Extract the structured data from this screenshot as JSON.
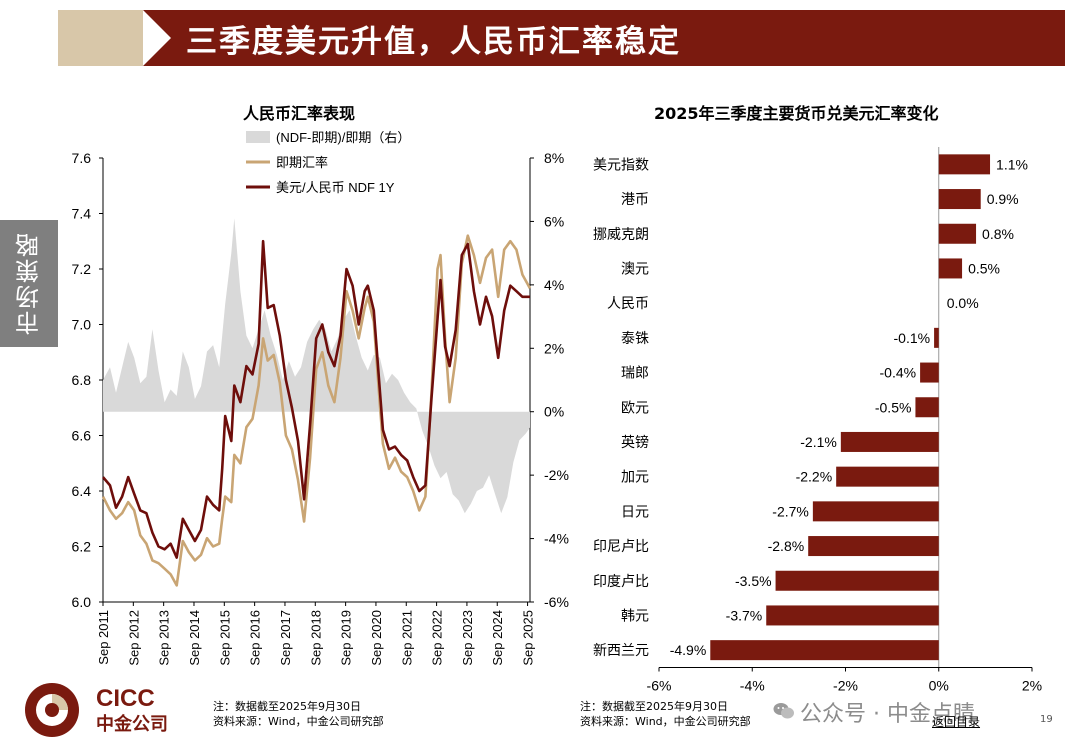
{
  "header": {
    "title": "三季度美元升值，人民币汇率稳定"
  },
  "side_tab": {
    "label": "市场策略"
  },
  "colors": {
    "brand": "#7a1a0f",
    "beige": "#d8c7a9",
    "gray_area": "#d9d9d9",
    "spot_line": "#c9a574",
    "ndf_line": "#6e0e0b"
  },
  "left_notes": {
    "line1": "注：数据截至2025年9月30日",
    "line2": "资料来源：Wind，中金公司研究部"
  },
  "right_notes": {
    "line1": "注：数据截至2025年9月30日",
    "line2": "资料来源：Wind，中金公司研究部"
  },
  "footer": {
    "wechat": "公众号 · 中金点睛",
    "back_link": "返回目录",
    "page_number": "19"
  },
  "logo": {
    "en": "CICC",
    "cn": "中金公司"
  },
  "chart_data": [
    {
      "type": "line",
      "title": "人民币汇率表现",
      "x_ticks": [
        "Sep 2011",
        "Sep 2012",
        "Sep 2013",
        "Sep 2014",
        "Sep 2015",
        "Sep 2016",
        "Sep 2017",
        "Sep 2018",
        "Sep 2019",
        "Sep 2020",
        "Sep 2021",
        "Sep 2022",
        "Sep 2023",
        "Sep 2024",
        "Sep 2025"
      ],
      "y_left": {
        "ticks": [
          "7.6",
          "7.4",
          "7.2",
          "7.0",
          "6.8",
          "6.6",
          "6.4",
          "6.2",
          "6.0"
        ],
        "range": [
          6.0,
          7.6
        ]
      },
      "y_right": {
        "ticks": [
          "8%",
          "6%",
          "4%",
          "2%",
          "0%",
          "-2%",
          "-4%",
          "-6%"
        ],
        "range": [
          -6,
          8
        ]
      },
      "legend_position": "top",
      "series": [
        {
          "name": "(NDF-即期)/即期（右）",
          "type": "area",
          "axis": "right",
          "x": [
            2011.67,
            2011.9,
            2012.1,
            2012.3,
            2012.5,
            2012.7,
            2012.9,
            2013.1,
            2013.3,
            2013.5,
            2013.7,
            2013.9,
            2014.1,
            2014.3,
            2014.5,
            2014.7,
            2014.9,
            2015.1,
            2015.3,
            2015.5,
            2015.7,
            2015.9,
            2016.0,
            2016.2,
            2016.4,
            2016.6,
            2016.8,
            2017.0,
            2017.2,
            2017.4,
            2017.6,
            2017.8,
            2018.0,
            2018.2,
            2018.4,
            2018.6,
            2018.8,
            2019.0,
            2019.2,
            2019.4,
            2019.6,
            2019.8,
            2020.0,
            2020.2,
            2020.4,
            2020.6,
            2020.8,
            2021.0,
            2021.2,
            2021.4,
            2021.6,
            2021.8,
            2022.0,
            2022.2,
            2022.4,
            2022.6,
            2022.8,
            2023.0,
            2023.2,
            2023.4,
            2023.6,
            2023.8,
            2024.0,
            2024.2,
            2024.4,
            2024.6,
            2024.8,
            2025.0,
            2025.2,
            2025.4,
            2025.6,
            2025.75
          ],
          "values": [
            1.0,
            1.4,
            0.6,
            1.4,
            2.2,
            1.7,
            0.9,
            1.1,
            2.6,
            1.3,
            0.3,
            0.7,
            0.5,
            1.9,
            1.4,
            0.4,
            0.8,
            1.9,
            2.1,
            1.4,
            3.4,
            5.0,
            6.1,
            3.8,
            2.4,
            2.0,
            2.6,
            3.2,
            2.4,
            1.8,
            1.0,
            1.6,
            1.1,
            1.4,
            2.2,
            2.6,
            2.9,
            2.6,
            1.9,
            2.3,
            2.9,
            3.2,
            2.4,
            1.7,
            1.3,
            1.8,
            1.7,
            0.9,
            1.2,
            1.0,
            0.6,
            0.3,
            0.1,
            -0.6,
            -1.1,
            -1.7,
            -2.1,
            -1.9,
            -2.6,
            -2.8,
            -3.2,
            -2.9,
            -2.5,
            -2.4,
            -2.0,
            -2.6,
            -3.2,
            -2.7,
            -1.6,
            -0.9,
            -0.7,
            -0.5
          ]
        },
        {
          "name": "即期汇率",
          "type": "line",
          "axis": "left",
          "x": [
            2011.67,
            2011.9,
            2012.1,
            2012.3,
            2012.5,
            2012.7,
            2012.9,
            2013.1,
            2013.3,
            2013.5,
            2013.7,
            2013.9,
            2014.1,
            2014.3,
            2014.5,
            2014.7,
            2014.9,
            2015.1,
            2015.3,
            2015.5,
            2015.6,
            2015.7,
            2015.9,
            2016.0,
            2016.2,
            2016.4,
            2016.6,
            2016.8,
            2016.95,
            2017.1,
            2017.3,
            2017.5,
            2017.7,
            2017.9,
            2018.1,
            2018.3,
            2018.5,
            2018.7,
            2018.9,
            2019.1,
            2019.3,
            2019.5,
            2019.7,
            2019.9,
            2020.1,
            2020.3,
            2020.4,
            2020.6,
            2020.8,
            2020.9,
            2021.1,
            2021.3,
            2021.5,
            2021.7,
            2021.9,
            2022.1,
            2022.3,
            2022.5,
            2022.7,
            2022.8,
            2022.95,
            2023.1,
            2023.3,
            2023.5,
            2023.7,
            2023.9,
            2024.1,
            2024.3,
            2024.5,
            2024.7,
            2024.9,
            2025.1,
            2025.3,
            2025.5,
            2025.75
          ],
          "values": [
            6.38,
            6.33,
            6.3,
            6.32,
            6.36,
            6.33,
            6.24,
            6.21,
            6.15,
            6.14,
            6.12,
            6.1,
            6.06,
            6.22,
            6.18,
            6.15,
            6.17,
            6.23,
            6.2,
            6.21,
            6.3,
            6.38,
            6.36,
            6.53,
            6.5,
            6.63,
            6.66,
            6.78,
            6.95,
            6.87,
            6.89,
            6.79,
            6.6,
            6.55,
            6.44,
            6.29,
            6.52,
            6.84,
            6.9,
            6.78,
            6.72,
            6.88,
            7.12,
            7.05,
            6.95,
            7.06,
            7.1,
            7.01,
            6.71,
            6.57,
            6.48,
            6.52,
            6.47,
            6.45,
            6.4,
            6.33,
            6.38,
            6.75,
            7.2,
            7.25,
            6.95,
            6.72,
            6.88,
            7.22,
            7.32,
            7.25,
            7.15,
            7.24,
            7.27,
            7.1,
            7.27,
            7.3,
            7.27,
            7.18,
            7.13
          ]
        },
        {
          "name": "美元/人民币 NDF 1Y",
          "type": "line",
          "axis": "left",
          "x": [
            2011.67,
            2011.9,
            2012.1,
            2012.3,
            2012.5,
            2012.7,
            2012.9,
            2013.1,
            2013.3,
            2013.5,
            2013.7,
            2013.9,
            2014.1,
            2014.3,
            2014.5,
            2014.7,
            2014.9,
            2015.1,
            2015.3,
            2015.5,
            2015.6,
            2015.7,
            2015.9,
            2016.0,
            2016.2,
            2016.4,
            2016.6,
            2016.8,
            2016.95,
            2017.1,
            2017.3,
            2017.5,
            2017.7,
            2017.9,
            2018.1,
            2018.3,
            2018.5,
            2018.7,
            2018.9,
            2019.1,
            2019.3,
            2019.5,
            2019.7,
            2019.9,
            2020.1,
            2020.3,
            2020.4,
            2020.6,
            2020.8,
            2020.9,
            2021.1,
            2021.3,
            2021.5,
            2021.7,
            2021.9,
            2022.1,
            2022.3,
            2022.5,
            2022.7,
            2022.8,
            2022.95,
            2023.1,
            2023.3,
            2023.5,
            2023.7,
            2023.9,
            2024.1,
            2024.3,
            2024.5,
            2024.7,
            2024.9,
            2025.1,
            2025.3,
            2025.5,
            2025.75
          ],
          "values": [
            6.45,
            6.42,
            6.34,
            6.38,
            6.45,
            6.39,
            6.33,
            6.32,
            6.25,
            6.2,
            6.19,
            6.21,
            6.16,
            6.3,
            6.26,
            6.22,
            6.26,
            6.38,
            6.35,
            6.33,
            6.48,
            6.67,
            6.58,
            6.78,
            6.72,
            6.85,
            6.82,
            6.93,
            7.3,
            7.06,
            7.07,
            6.96,
            6.8,
            6.7,
            6.58,
            6.37,
            6.64,
            6.95,
            7.0,
            6.9,
            6.85,
            6.96,
            7.2,
            7.14,
            7.0,
            7.12,
            7.14,
            7.05,
            6.76,
            6.62,
            6.55,
            6.56,
            6.53,
            6.51,
            6.45,
            6.4,
            6.42,
            6.73,
            7.02,
            7.16,
            6.92,
            6.85,
            6.98,
            7.25,
            7.29,
            7.12,
            7.0,
            7.1,
            7.03,
            6.88,
            7.05,
            7.14,
            7.12,
            7.1,
            7.1
          ]
        }
      ]
    },
    {
      "type": "bar",
      "orientation": "horizontal",
      "title": "2025年三季度主要货币兑美元汇率变化",
      "categories": [
        "美元指数",
        "港币",
        "挪威克朗",
        "澳元",
        "人民币",
        "泰铢",
        "瑞郎",
        "欧元",
        "英镑",
        "加元",
        "日元",
        "印尼卢比",
        "印度卢比",
        "韩元",
        "新西兰元"
      ],
      "values": [
        1.1,
        0.9,
        0.8,
        0.5,
        0.0,
        -0.1,
        -0.4,
        -0.5,
        -2.1,
        -2.2,
        -2.7,
        -2.8,
        -3.5,
        -3.7,
        -4.9
      ],
      "labels": [
        "1.1%",
        "0.9%",
        "0.8%",
        "0.5%",
        "0.0%",
        "-0.1%",
        "-0.4%",
        "-0.5%",
        "-2.1%",
        "-2.2%",
        "-2.7%",
        "-2.8%",
        "-3.5%",
        "-3.7%",
        "-4.9%"
      ],
      "x_ticks": [
        "-6%",
        "-4%",
        "-2%",
        "0%",
        "2%"
      ],
      "xlim": [
        -6,
        2
      ]
    }
  ]
}
